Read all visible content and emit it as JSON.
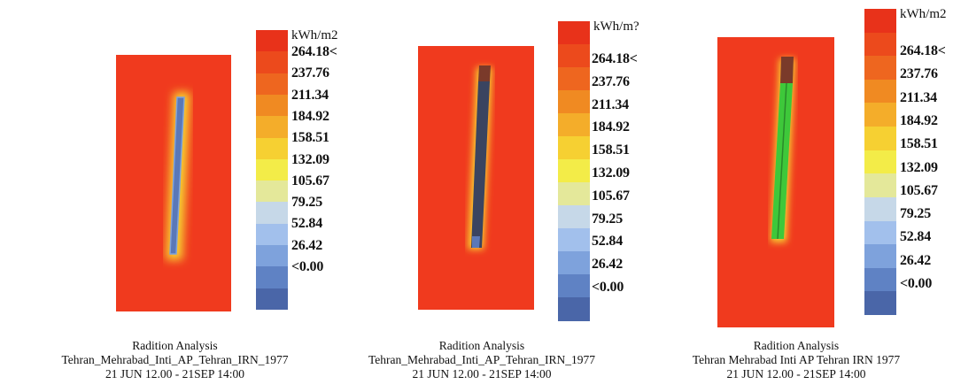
{
  "legend": {
    "unit": "kWh/m2",
    "unit_alt": "kWh/m?",
    "ticks": [
      "264.18<",
      "237.76",
      "211.34",
      "184.92",
      "158.51",
      "132.09",
      "105.67",
      "79.25",
      "52.84",
      "26.42",
      "<0.00"
    ],
    "colors": [
      "#e8321a",
      "#ec4a1c",
      "#ee661f",
      "#f08a22",
      "#f4ad2a",
      "#f6d032",
      "#f3ec48",
      "#e4e89a",
      "#c6d8e8",
      "#a2c0ec",
      "#7ea2dc",
      "#5f82c4",
      "#4a66a8"
    ]
  },
  "panels": [
    {
      "caption_title": "Radition Analysis",
      "caption_location": "Tehran_Mehrabad_Inti_AP_Tehran_IRN_1977",
      "caption_period": "21 JUN 12.00 - 21SEP 14:00",
      "unit_label": "kWh/m2",
      "colors": {
        "ground": "#f03a1e",
        "building": "#5a78b8",
        "top": "#6a8acc"
      }
    },
    {
      "caption_title": "Radition Analysis",
      "caption_location": "Tehran_Mehrabad_Inti_AP_Tehran_IRN_1977",
      "caption_period": "21 JUN 12.00 - 21SEP 14:00",
      "unit_label": "kWh/m?",
      "colors": {
        "ground": "#f03a1e",
        "building": "#3a4460",
        "top": "#7a3a2a"
      }
    },
    {
      "caption_title": "Radition Analysis",
      "caption_location": "Tehran  Mehrabad  Inti  AP  Tehran  IRN  1977",
      "caption_period": "21 JUN 12.00 - 21SEP 14:00",
      "unit_label": "kWh/m2",
      "colors": {
        "ground": "#f03a1e",
        "building": "#3ec83a",
        "top": "#7a3a2a"
      }
    }
  ]
}
